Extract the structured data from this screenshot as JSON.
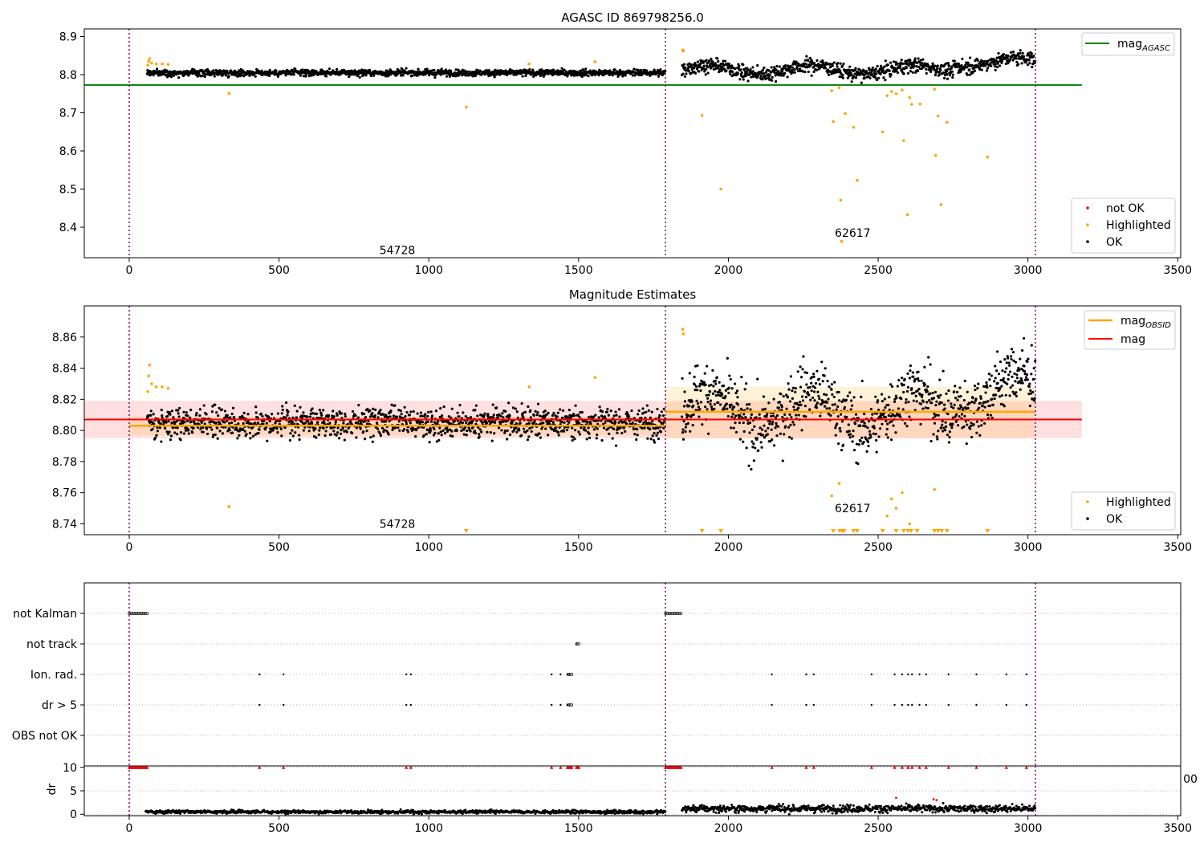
{
  "chart_data": [
    {
      "type": "scatter",
      "title": "AGASC ID 869798256.0",
      "xlim": [
        -150,
        3510
      ],
      "ylim": [
        8.32,
        8.92
      ],
      "xticks": [
        0,
        500,
        1000,
        1500,
        2000,
        2500,
        3000,
        3500
      ],
      "yticks": [
        8.4,
        8.5,
        8.6,
        8.7,
        8.8,
        8.9
      ],
      "vlines": [
        0,
        1790,
        3025
      ],
      "obsid_labels": [
        {
          "text": "54728",
          "x": 895,
          "y": 8.33
        },
        {
          "text": "62617",
          "x": 2415,
          "y": 8.375
        }
      ],
      "reference_line": {
        "name": "mag",
        "subscript": "AGASC",
        "y": 8.773,
        "x": [
          -150,
          3180
        ],
        "color": "#008000"
      },
      "legend_upper": {
        "position": "top-right",
        "entries": [
          {
            "name": "mag",
            "subscript": "AGASC",
            "color": "#008000"
          }
        ]
      },
      "legend_lower": {
        "position": "bottom-right",
        "entries": [
          {
            "name": "not OK",
            "color": "#ff0000"
          },
          {
            "name": "Highlighted",
            "color": "#ffa500"
          },
          {
            "name": "OK",
            "color": "#000000"
          }
        ]
      },
      "series": [
        {
          "name": "OK",
          "color": "#000000",
          "segments": [
            {
              "x_start": 60,
              "x_end": 1790,
              "base": 8.805,
              "noise": 0.006
            },
            {
              "x_start": 1845,
              "x_end": 3025,
              "base": 8.813,
              "noise": 0.013
            }
          ]
        },
        {
          "name": "Highlighted",
          "color": "#ffa500",
          "points": [
            [
              62,
              8.825
            ],
            [
              65,
              8.835
            ],
            [
              68,
              8.842
            ],
            [
              75,
              8.83
            ],
            [
              90,
              8.828
            ],
            [
              110,
              8.828
            ],
            [
              130,
              8.827
            ],
            [
              333,
              8.751
            ],
            [
              1125,
              8.715
            ],
            [
              1335,
              8.828
            ],
            [
              1555,
              8.834
            ],
            [
              1848,
              8.865
            ],
            [
              1850,
              8.862
            ],
            [
              1912,
              8.693
            ],
            [
              1975,
              8.5
            ],
            [
              2345,
              8.758
            ],
            [
              2350,
              8.677
            ],
            [
              2370,
              8.766
            ],
            [
              2375,
              8.471
            ],
            [
              2378,
              8.363
            ],
            [
              2390,
              8.698
            ],
            [
              2418,
              8.662
            ],
            [
              2430,
              8.523
            ],
            [
              2515,
              8.65
            ],
            [
              2530,
              8.745
            ],
            [
              2545,
              8.756
            ],
            [
              2560,
              8.75
            ],
            [
              2580,
              8.76
            ],
            [
              2585,
              8.627
            ],
            [
              2598,
              8.433
            ],
            [
              2605,
              8.74
            ],
            [
              2612,
              8.722
            ],
            [
              2640,
              8.723
            ],
            [
              2688,
              8.762
            ],
            [
              2692,
              8.588
            ],
            [
              2700,
              8.692
            ],
            [
              2710,
              8.459
            ],
            [
              2730,
              8.675
            ],
            [
              2865,
              8.584
            ]
          ]
        },
        {
          "name": "not OK",
          "color": "#ff0000",
          "points": []
        }
      ]
    },
    {
      "type": "scatter",
      "title": "Magnitude Estimates",
      "xlim": [
        -150,
        3510
      ],
      "ylim": [
        8.733,
        8.88
      ],
      "xticks": [
        0,
        500,
        1000,
        1500,
        2000,
        2500,
        3000,
        3500
      ],
      "yticks": [
        8.74,
        8.76,
        8.78,
        8.8,
        8.82,
        8.84,
        8.86
      ],
      "vlines": [
        0,
        1790,
        3025
      ],
      "obsid_labels": [
        {
          "text": "54728",
          "x": 895,
          "y": 8.7375
        },
        {
          "text": "62617",
          "x": 2415,
          "y": 8.7475
        }
      ],
      "mag_line": {
        "name": "mag",
        "y": 8.807,
        "band": [
          8.795,
          8.819
        ],
        "x": [
          -150,
          3180
        ],
        "color": "#ff0000"
      },
      "mag_obsid": [
        {
          "x": [
            0,
            1790
          ],
          "y": 8.803,
          "band": [
            8.797,
            8.809
          ]
        },
        {
          "x": [
            1790,
            3025
          ],
          "y": 8.812,
          "band": [
            8.795,
            8.828
          ]
        }
      ],
      "out_of_range_markers": [
        1125,
        1912,
        1975,
        2350,
        2372,
        2380,
        2386,
        2418,
        2430,
        2515,
        2560,
        2585,
        2600,
        2610,
        2630,
        2688,
        2700,
        2712,
        2730,
        2865
      ],
      "legend_upper": {
        "position": "top-right",
        "entries": [
          {
            "name": "mag",
            "subscript": "OBSID",
            "color": "#ffa500"
          },
          {
            "name": "mag",
            "color": "#ff0000"
          }
        ]
      },
      "legend_lower": {
        "position": "bottom-right",
        "entries": [
          {
            "name": "Highlighted",
            "color": "#ffa500"
          },
          {
            "name": "OK",
            "color": "#000000"
          }
        ]
      }
    },
    {
      "type": "scatter",
      "title": "",
      "categories": [
        "not Kalman",
        "not track",
        "Ion. rad.",
        "dr > 5",
        "OBS not OK"
      ],
      "xlim": [
        -150,
        3510
      ],
      "vlines": [
        0,
        1790,
        3025
      ],
      "flags": {
        "not Kalman": {
          "ranges": [
            [
              0,
              60
            ],
            [
              1790,
              1845
            ]
          ],
          "points": []
        },
        "not track": {
          "ranges": [
            [
              1493,
              1503
            ]
          ],
          "points": []
        },
        "Ion. rad.": {
          "ranges": [
            [
              1465,
              1478
            ]
          ],
          "points": [
            435,
            515,
            925,
            940,
            1410,
            1440,
            1463,
            2145,
            2260,
            2285,
            2478,
            2555,
            2580,
            2600,
            2613,
            2638,
            2660,
            2735,
            2828,
            2928,
            2995
          ]
        },
        "dr > 5": {
          "ranges": [
            [
              1465,
              1478
            ]
          ],
          "points": [
            435,
            515,
            925,
            940,
            1410,
            1440,
            1463,
            2145,
            2260,
            2285,
            2478,
            2555,
            2580,
            2600,
            2613,
            2638,
            2660,
            2735,
            2828,
            2928,
            2995
          ]
        },
        "OBS not OK": {
          "ranges": [],
          "points": []
        }
      }
    },
    {
      "type": "scatter",
      "title": "",
      "ylabel": "dr",
      "xlim": [
        -150,
        3510
      ],
      "ylim": [
        -0.3,
        10.3
      ],
      "xticks": [
        0,
        500,
        1000,
        1500,
        2000,
        2500,
        3000,
        3500
      ],
      "yticks": [
        0,
        5,
        10
      ],
      "vlines": [
        0,
        1790,
        3025
      ],
      "clipped_tick_label": "00",
      "ok_segments": [
        {
          "x_start": 55,
          "x_end": 1790,
          "base": 0.5,
          "noise": 0.25
        },
        {
          "x_start": 1845,
          "x_end": 3025,
          "base": 1.2,
          "noise": 0.55
        }
      ],
      "capped_points": {
        "y": 10,
        "color": "#ff0000",
        "ranges": [
          [
            0,
            60
          ],
          [
            1790,
            1845
          ],
          [
            1465,
            1478
          ],
          [
            1493,
            1503
          ]
        ],
        "x": [
          435,
          515,
          925,
          940,
          1410,
          1440,
          1463,
          2145,
          2260,
          2285,
          2478,
          2555,
          2580,
          2600,
          2613,
          2638,
          2660,
          2735,
          2828,
          2928,
          2995
        ]
      },
      "red_points": [
        [
          2560,
          3.5
        ],
        [
          2685,
          3.2
        ],
        [
          2695,
          3.0
        ]
      ]
    }
  ]
}
